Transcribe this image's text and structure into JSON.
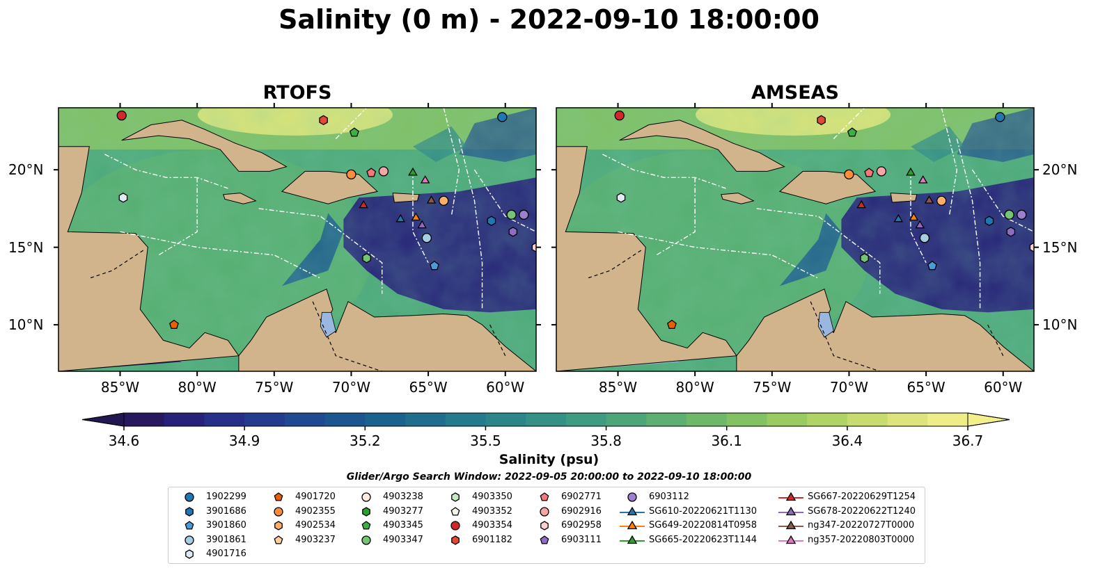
{
  "title": "Salinity (0 m) - 2022-09-10 18:00:00",
  "panels": [
    {
      "title": "RTOFS"
    },
    {
      "title": "AMSEAS"
    }
  ],
  "lon_ticks": [
    "85°W",
    "80°W",
    "75°W",
    "70°W",
    "65°W",
    "60°W"
  ],
  "lon_values": [
    -85,
    -80,
    -75,
    -70,
    -65,
    -60
  ],
  "lat_ticks": [
    "20°N",
    "15°N",
    "10°N"
  ],
  "lat_values": [
    20,
    15,
    10
  ],
  "extent": {
    "lon": [
      -89,
      -58
    ],
    "lat": [
      7,
      24
    ]
  },
  "colorbar": {
    "label": "Salinity (psu)",
    "ticks": [
      "34.6",
      "34.9",
      "35.2",
      "35.5",
      "35.8",
      "36.1",
      "36.4",
      "36.7"
    ],
    "range": [
      34.6,
      36.7
    ],
    "colors": [
      "#27185f",
      "#28217a",
      "#272f8a",
      "#233c90",
      "#1f4a92",
      "#1c5691",
      "#1c628f",
      "#1f6e8d",
      "#257a8b",
      "#2c8689",
      "#349185",
      "#3f9c80",
      "#4da67a",
      "#5db071",
      "#6eb969",
      "#82c262",
      "#99cb60",
      "#b0d365",
      "#c7db6e",
      "#dce47b",
      "#eeed87"
    ]
  },
  "search_window": "Glider/Argo Search Window: 2022-09-05 20:00:00 to 2022-09-10 18:00:00",
  "legend": {
    "columns": [
      [
        {
          "label": "1902299",
          "marker": "circle",
          "color": "#1f77b4"
        },
        {
          "label": "3901686",
          "marker": "hexagon",
          "color": "#1f77b4"
        },
        {
          "label": "3901860",
          "marker": "pentagon",
          "color": "#4b9cd6"
        },
        {
          "label": "3901861",
          "marker": "circle",
          "color": "#a6cee3"
        },
        {
          "label": "4901716",
          "marker": "hexagon",
          "color": "#deebf7"
        }
      ],
      [
        {
          "label": "4901720",
          "marker": "pentagon",
          "color": "#e66101"
        },
        {
          "label": "4902355",
          "marker": "circle",
          "color": "#fd8d3c"
        },
        {
          "label": "4902534",
          "marker": "hexagon",
          "color": "#fdae6b"
        },
        {
          "label": "4903237",
          "marker": "pentagon",
          "color": "#fdd0a2"
        }
      ],
      [
        {
          "label": "4903238",
          "marker": "circle",
          "color": "#feedde"
        },
        {
          "label": "4903277",
          "marker": "hexagon",
          "color": "#2ca02c"
        },
        {
          "label": "4903345",
          "marker": "pentagon",
          "color": "#3cb043"
        },
        {
          "label": "4903347",
          "marker": "circle",
          "color": "#74c476"
        }
      ],
      [
        {
          "label": "4903350",
          "marker": "hexagon",
          "color": "#c7e9c0"
        },
        {
          "label": "4903352",
          "marker": "pentagon",
          "color": "#edf8e9"
        },
        {
          "label": "4903354",
          "marker": "circle",
          "color": "#d62728"
        },
        {
          "label": "6901182",
          "marker": "hexagon",
          "color": "#e34a33"
        }
      ],
      [
        {
          "label": "6902771",
          "marker": "pentagon",
          "color": "#f4787c"
        },
        {
          "label": "6902916",
          "marker": "circle",
          "color": "#f7a6a8"
        },
        {
          "label": "6902958",
          "marker": "hexagon",
          "color": "#fcd0d0"
        },
        {
          "label": "6903111",
          "marker": "pentagon",
          "color": "#8e6cc4"
        }
      ],
      [
        {
          "label": "6903112",
          "marker": "circle",
          "color": "#9e7fcf"
        },
        {
          "label": "SG610-20220621T1130",
          "marker": "triangle-line",
          "color": "#1f77b4"
        },
        {
          "label": "SG649-20220814T0958",
          "marker": "triangle-line",
          "color": "#ff7f0e"
        },
        {
          "label": "SG665-20220623T1144",
          "marker": "triangle-line",
          "color": "#2ca02c"
        }
      ],
      [
        {
          "label": "SG667-20220629T1254",
          "marker": "triangle-line",
          "color": "#d62728"
        },
        {
          "label": "SG678-20220622T1240",
          "marker": "triangle-line",
          "color": "#9467bd"
        },
        {
          "label": "ng347-20220727T0000",
          "marker": "triangle-line",
          "color": "#8c564b"
        },
        {
          "label": "ng357-20220803T0000",
          "marker": "triangle-line",
          "color": "#e377c2"
        }
      ]
    ]
  },
  "markers": [
    {
      "lon": -84.9,
      "lat": 23.5,
      "marker": "circle",
      "color": "#d62728"
    },
    {
      "lon": -71.8,
      "lat": 23.2,
      "marker": "hexagon",
      "color": "#e34a33"
    },
    {
      "lon": -60.2,
      "lat": 23.4,
      "marker": "circle",
      "color": "#1f77b4"
    },
    {
      "lon": -69.8,
      "lat": 22.4,
      "marker": "pentagon",
      "color": "#3cb043"
    },
    {
      "lon": -84.8,
      "lat": 18.2,
      "marker": "hexagon",
      "color": "#deebf7"
    },
    {
      "lon": -70.0,
      "lat": 19.7,
      "marker": "circle",
      "color": "#fd8d3c"
    },
    {
      "lon": -68.7,
      "lat": 19.8,
      "marker": "pentagon",
      "color": "#f4787c"
    },
    {
      "lon": -67.9,
      "lat": 19.9,
      "marker": "circle",
      "color": "#f7a6a8"
    },
    {
      "lon": -66.0,
      "lat": 19.8,
      "marker": "triangle",
      "color": "#2ca02c"
    },
    {
      "lon": -65.2,
      "lat": 19.3,
      "marker": "triangle",
      "color": "#e377c2"
    },
    {
      "lon": -69.2,
      "lat": 17.7,
      "marker": "triangle",
      "color": "#d62728"
    },
    {
      "lon": -66.8,
      "lat": 16.8,
      "marker": "triangle",
      "color": "#1f77b4"
    },
    {
      "lon": -65.8,
      "lat": 16.9,
      "marker": "triangle",
      "color": "#ff7f0e"
    },
    {
      "lon": -65.4,
      "lat": 16.4,
      "marker": "triangle",
      "color": "#9467bd"
    },
    {
      "lon": -64.8,
      "lat": 18.0,
      "marker": "triangle",
      "color": "#8c564b"
    },
    {
      "lon": -64.0,
      "lat": 18.0,
      "marker": "circle",
      "color": "#fdae6b"
    },
    {
      "lon": -65.1,
      "lat": 15.6,
      "marker": "circle",
      "color": "#a6cee3"
    },
    {
      "lon": -64.6,
      "lat": 13.8,
      "marker": "pentagon",
      "color": "#4b9cd6"
    },
    {
      "lon": -69.0,
      "lat": 14.3,
      "marker": "hexagon",
      "color": "#74c476"
    },
    {
      "lon": -60.9,
      "lat": 16.7,
      "marker": "hexagon",
      "color": "#1f77b4"
    },
    {
      "lon": -59.6,
      "lat": 17.1,
      "marker": "circle",
      "color": "#74c476"
    },
    {
      "lon": -58.8,
      "lat": 17.1,
      "marker": "circle",
      "color": "#9e7fcf"
    },
    {
      "lon": -59.5,
      "lat": 16.0,
      "marker": "hexagon",
      "color": "#8e6cc4"
    },
    {
      "lon": -58.0,
      "lat": 15.0,
      "marker": "hexagon",
      "color": "#fcd0d0"
    },
    {
      "lon": -81.5,
      "lat": 10.0,
      "marker": "pentagon",
      "color": "#e66101"
    }
  ]
}
